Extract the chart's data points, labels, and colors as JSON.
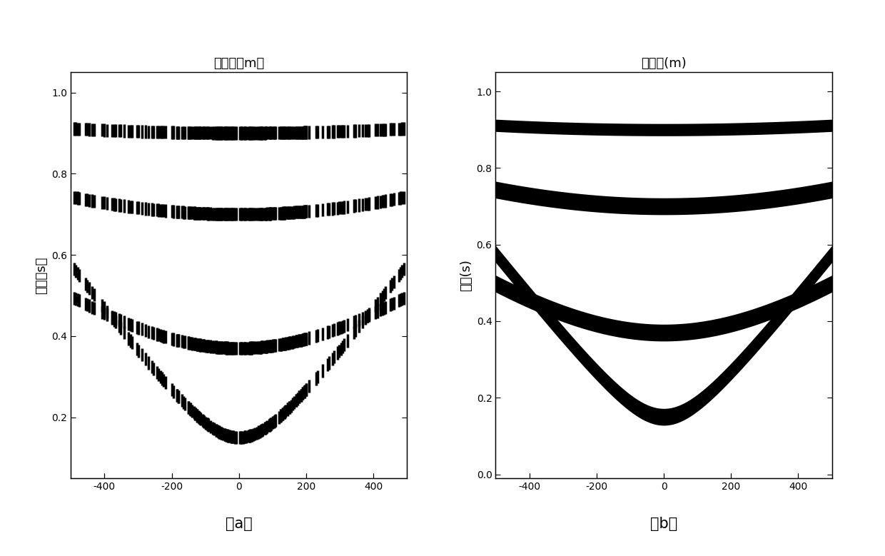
{
  "xlabel_top_a": "偏移距（m）",
  "xlabel_top_b": "偏移距(m)",
  "ylabel_a": "时间（s）",
  "ylabel_b": "时间(s)",
  "xlim": [
    -500,
    500
  ],
  "xticks": [
    -400,
    -200,
    0,
    200,
    400
  ],
  "yticks_a": [
    0.2,
    0.4,
    0.6,
    0.8,
    1.0
  ],
  "yticks_b": [
    0,
    0.2,
    0.4,
    0.6,
    0.8,
    1.0
  ],
  "ylim_a": [
    1.05,
    0.05
  ],
  "ylim_b": [
    1.05,
    -0.01
  ],
  "label_a": "（a）",
  "label_b": "（b）",
  "bg_color": "#ffffff",
  "reflector_t0": [
    0.15,
    0.37,
    0.7,
    0.9
  ],
  "reflector_v": [
    900,
    1500,
    2000,
    3500
  ],
  "band_hw": [
    0.022,
    0.022,
    0.022,
    0.016
  ],
  "n_traces": 200,
  "missing_prob": 0.35,
  "wavelet_hw": 0.016,
  "trace_lw": 2.5
}
